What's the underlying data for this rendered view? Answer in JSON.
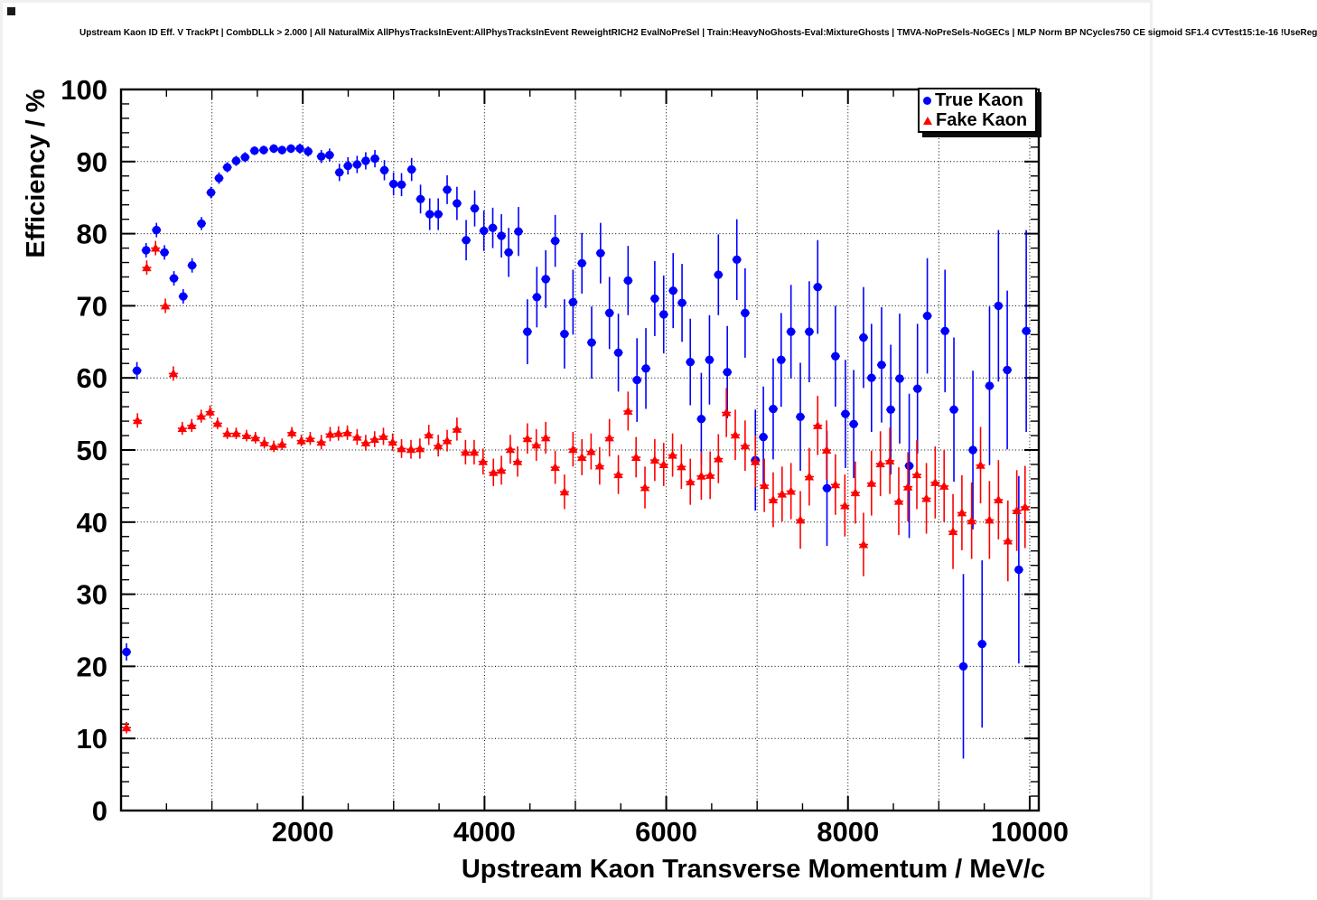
{
  "canvas": {
    "background": "#ffffff",
    "frame_color": "#000000",
    "grid_color": "#000000",
    "accent_blue": "#0000ff",
    "accent_red": "#ff0000"
  },
  "header": {
    "title": "Upstream Kaon ID Eff. V TrackPt | CombDLLk > 2.000 | All NaturalMix AllPhysTracksInEvent:AllPhysTracksInEvent ReweightRICH2 EvalNoPreSel | Train:HeavyNoGhosts-Eval:MixtureGhosts | TMVA-NoPreSels-NoGECs | MLP Norm BP NCycles750 CE sigmoid SF1.4 CVTest15:1e-16 !UseReg"
  },
  "chart_data": {
    "type": "scatter",
    "title": "Upstream Kaon ID Eff. V TrackPt | CombDLLk > 2.000 | All NaturalMix AllPhysTracksInEvent:AllPhysTracksInEvent ReweightRICH2 EvalNoPreSel | Train:HeavyNoGhosts-Eval:MixtureGhosts | TMVA-NoPreSels-NoGECs | MLP Norm BP NCycles750 CE sigmoid SF1.4 CVTest15:1e-16 !UseReg",
    "xlabel": "Upstream Kaon Transverse Momentum / MeV/c",
    "ylabel": "Efficiency / %",
    "xlim": [
      0,
      10100
    ],
    "ylim": [
      0,
      100
    ],
    "x_major_ticks": [
      2000,
      4000,
      6000,
      8000,
      10000
    ],
    "x_mid_tick_step": 1000,
    "x_minor_tick_step": 500,
    "y_major_ticks": [
      0,
      10,
      20,
      30,
      40,
      50,
      60,
      70,
      80,
      90,
      100
    ],
    "y_minor_tick_step": 2,
    "grid": {
      "x_step": 1000,
      "y_step": 10,
      "style": "dotted",
      "on": true
    },
    "legend": {
      "position": "top-right",
      "entries": [
        {
          "label": "True Kaon",
          "marker": "circle",
          "color": "#0000ff"
        },
        {
          "label": "Fake Kaon",
          "marker": "triangle",
          "color": "#ff0000"
        }
      ]
    },
    "point_format": [
      "pt_MeV",
      "efficiency_percent",
      "error_percent"
    ],
    "series": [
      {
        "name": "True Kaon",
        "marker": "circle",
        "color": "#0000ff",
        "points": [
          [
            60,
            22.0,
            1.2
          ],
          [
            175,
            61.0,
            1.2
          ],
          [
            276,
            77.7,
            1.0
          ],
          [
            390,
            80.5,
            1.0
          ],
          [
            478,
            77.4,
            1.0
          ],
          [
            582,
            73.8,
            1.0
          ],
          [
            684,
            71.3,
            1.0
          ],
          [
            782,
            75.6,
            1.0
          ],
          [
            885,
            81.4,
            0.9
          ],
          [
            990,
            85.7,
            0.8
          ],
          [
            1078,
            87.7,
            0.8
          ],
          [
            1169,
            89.2,
            0.7
          ],
          [
            1267,
            90.1,
            0.7
          ],
          [
            1365,
            90.6,
            0.7
          ],
          [
            1469,
            91.5,
            0.6
          ],
          [
            1570,
            91.6,
            0.6
          ],
          [
            1681,
            91.8,
            0.6
          ],
          [
            1772,
            91.6,
            0.6
          ],
          [
            1870,
            91.8,
            0.6
          ],
          [
            1968,
            91.8,
            0.7
          ],
          [
            2059,
            91.4,
            0.7
          ],
          [
            2204,
            90.7,
            0.9
          ],
          [
            2295,
            90.9,
            0.9
          ],
          [
            2403,
            88.5,
            1.2
          ],
          [
            2497,
            89.4,
            1.2
          ],
          [
            2598,
            89.6,
            1.2
          ],
          [
            2693,
            90.1,
            1.2
          ],
          [
            2794,
            90.4,
            1.2
          ],
          [
            2898,
            88.8,
            1.4
          ],
          [
            2999,
            86.9,
            1.6
          ],
          [
            3087,
            86.8,
            1.6
          ],
          [
            3198,
            88.9,
            1.6
          ],
          [
            3296,
            84.8,
            2.0
          ],
          [
            3397,
            82.7,
            2.2
          ],
          [
            3491,
            82.7,
            2.2
          ],
          [
            3589,
            86.1,
            2.0
          ],
          [
            3697,
            84.2,
            2.3
          ],
          [
            3798,
            79.1,
            2.8
          ],
          [
            3892,
            83.5,
            2.5
          ],
          [
            3993,
            80.4,
            2.8
          ],
          [
            4091,
            80.8,
            2.8
          ],
          [
            4186,
            79.7,
            3.0
          ],
          [
            4266,
            77.4,
            3.4
          ],
          [
            4374,
            80.3,
            3.4
          ],
          [
            4472,
            66.4,
            4.5
          ],
          [
            4576,
            71.2,
            4.2
          ],
          [
            4674,
            73.7,
            4.0
          ],
          [
            4778,
            79.0,
            3.6
          ],
          [
            4880,
            66.1,
            4.8
          ],
          [
            4974,
            70.5,
            4.5
          ],
          [
            5072,
            75.9,
            4.2
          ],
          [
            5179,
            64.9,
            5.0
          ],
          [
            5277,
            77.3,
            4.2
          ],
          [
            5375,
            69.0,
            5.0
          ],
          [
            5473,
            63.5,
            5.4
          ],
          [
            5580,
            73.5,
            4.8
          ],
          [
            5678,
            59.7,
            5.8
          ],
          [
            5776,
            61.3,
            5.6
          ],
          [
            5874,
            71.0,
            5.2
          ],
          [
            5972,
            68.8,
            5.4
          ],
          [
            6076,
            72.1,
            5.2
          ],
          [
            6174,
            70.4,
            5.4
          ],
          [
            6265,
            62.2,
            6.0
          ],
          [
            6386,
            54.3,
            6.4
          ],
          [
            6476,
            62.5,
            6.2
          ],
          [
            6574,
            74.3,
            5.6
          ],
          [
            6672,
            60.8,
            6.4
          ],
          [
            6777,
            76.4,
            5.6
          ],
          [
            6868,
            69.0,
            6.2
          ],
          [
            6981,
            48.6,
            7.0
          ],
          [
            7069,
            51.8,
            7.0
          ],
          [
            7177,
            55.7,
            7.0
          ],
          [
            7265,
            62.5,
            6.5
          ],
          [
            7373,
            66.4,
            6.5
          ],
          [
            7476,
            54.6,
            7.5
          ],
          [
            7574,
            66.4,
            7.0
          ],
          [
            7667,
            72.6,
            6.5
          ],
          [
            7769,
            44.7,
            8.0
          ],
          [
            7862,
            63.0,
            7.0
          ],
          [
            7972,
            55.0,
            7.5
          ],
          [
            8063,
            53.6,
            7.5
          ],
          [
            8171,
            65.6,
            7.0
          ],
          [
            8259,
            60.0,
            7.5
          ],
          [
            8370,
            61.8,
            8.0
          ],
          [
            8471,
            55.6,
            9.0
          ],
          [
            8569,
            59.9,
            9.0
          ],
          [
            8674,
            47.8,
            10.0
          ],
          [
            8765,
            58.5,
            9.0
          ],
          [
            8873,
            68.6,
            8.0
          ],
          [
            9068,
            66.5,
            8.5
          ],
          [
            9166,
            55.6,
            10.0
          ],
          [
            9270,
            20.0,
            12.8
          ],
          [
            9375,
            50.0,
            11.0
          ],
          [
            9476,
            23.1,
            11.6
          ],
          [
            9558,
            58.9,
            11.0
          ],
          [
            9656,
            70.0,
            10.5
          ],
          [
            9753,
            61.1,
            11.0
          ],
          [
            9880,
            33.4,
            13.0
          ],
          [
            9962,
            66.5,
            14.0
          ]
        ]
      },
      {
        "name": "Fake Kaon",
        "marker": "triangle",
        "color": "#ff0000",
        "points": [
          [
            60,
            11.5,
            0.8
          ],
          [
            181,
            54.1,
            1.0
          ],
          [
            283,
            75.3,
            1.0
          ],
          [
            380,
            78.0,
            1.0
          ],
          [
            488,
            70.0,
            1.0
          ],
          [
            576,
            60.6,
            1.0
          ],
          [
            674,
            53.0,
            0.9
          ],
          [
            778,
            53.4,
            0.9
          ],
          [
            882,
            54.7,
            0.9
          ],
          [
            980,
            55.3,
            0.9
          ],
          [
            1062,
            53.7,
            0.8
          ],
          [
            1169,
            52.3,
            0.8
          ],
          [
            1267,
            52.3,
            0.8
          ],
          [
            1381,
            52.0,
            0.8
          ],
          [
            1479,
            51.7,
            0.8
          ],
          [
            1577,
            51.0,
            0.8
          ],
          [
            1681,
            50.5,
            0.8
          ],
          [
            1772,
            50.8,
            0.8
          ],
          [
            1880,
            52.4,
            0.8
          ],
          [
            1984,
            51.3,
            0.8
          ],
          [
            2082,
            51.6,
            0.9
          ],
          [
            2204,
            51.1,
            1.0
          ],
          [
            2301,
            52.2,
            1.0
          ],
          [
            2393,
            52.3,
            1.0
          ],
          [
            2491,
            52.4,
            1.0
          ],
          [
            2598,
            51.8,
            1.1
          ],
          [
            2693,
            51.0,
            1.1
          ],
          [
            2791,
            51.5,
            1.1
          ],
          [
            2888,
            51.9,
            1.2
          ],
          [
            2989,
            51.1,
            1.2
          ],
          [
            3087,
            50.2,
            1.3
          ],
          [
            3191,
            50.1,
            1.3
          ],
          [
            3289,
            50.2,
            1.4
          ],
          [
            3387,
            52.1,
            1.4
          ],
          [
            3491,
            50.6,
            1.5
          ],
          [
            3589,
            51.3,
            1.5
          ],
          [
            3697,
            52.9,
            1.6
          ],
          [
            3791,
            49.7,
            1.7
          ],
          [
            3886,
            49.7,
            1.7
          ],
          [
            3984,
            48.4,
            1.8
          ],
          [
            4098,
            46.9,
            1.9
          ],
          [
            4186,
            47.2,
            2.0
          ],
          [
            4284,
            50.1,
            2.0
          ],
          [
            4364,
            48.4,
            2.1
          ],
          [
            4472,
            51.6,
            2.1
          ],
          [
            4570,
            50.7,
            2.2
          ],
          [
            4674,
            51.7,
            2.2
          ],
          [
            4778,
            47.6,
            2.3
          ],
          [
            4880,
            44.2,
            2.4
          ],
          [
            4974,
            50.1,
            2.4
          ],
          [
            5072,
            49.0,
            2.5
          ],
          [
            5173,
            49.8,
            2.5
          ],
          [
            5267,
            47.8,
            2.6
          ],
          [
            5375,
            51.7,
            2.6
          ],
          [
            5473,
            46.6,
            2.7
          ],
          [
            5580,
            55.4,
            2.7
          ],
          [
            5668,
            49.0,
            2.8
          ],
          [
            5766,
            44.8,
            2.9
          ],
          [
            5874,
            48.6,
            2.9
          ],
          [
            5972,
            48.0,
            3.0
          ],
          [
            6070,
            49.3,
            3.0
          ],
          [
            6167,
            47.7,
            3.1
          ],
          [
            6265,
            45.6,
            3.2
          ],
          [
            6386,
            46.4,
            3.3
          ],
          [
            6483,
            46.5,
            3.3
          ],
          [
            6574,
            48.8,
            3.4
          ],
          [
            6662,
            55.2,
            3.4
          ],
          [
            6760,
            52.1,
            3.5
          ],
          [
            6868,
            50.6,
            3.5
          ],
          [
            6981,
            48.4,
            3.6
          ],
          [
            7079,
            45.1,
            3.7
          ],
          [
            7177,
            43.1,
            3.8
          ],
          [
            7275,
            43.9,
            3.8
          ],
          [
            7373,
            44.3,
            3.9
          ],
          [
            7476,
            40.3,
            4.0
          ],
          [
            7574,
            46.3,
            4.0
          ],
          [
            7667,
            53.4,
            4.1
          ],
          [
            7765,
            50.0,
            4.1
          ],
          [
            7862,
            45.2,
            4.2
          ],
          [
            7966,
            42.3,
            4.3
          ],
          [
            8081,
            44.1,
            4.3
          ],
          [
            8171,
            36.9,
            4.4
          ],
          [
            8259,
            45.4,
            4.5
          ],
          [
            8357,
            48.1,
            4.5
          ],
          [
            8461,
            48.5,
            4.6
          ],
          [
            8559,
            42.9,
            4.7
          ],
          [
            8660,
            44.9,
            4.8
          ],
          [
            8758,
            46.6,
            4.8
          ],
          [
            8863,
            43.3,
            4.9
          ],
          [
            8960,
            45.5,
            5.0
          ],
          [
            9058,
            45.0,
            5.0
          ],
          [
            9156,
            38.7,
            5.2
          ],
          [
            9254,
            41.3,
            5.2
          ],
          [
            9361,
            40.2,
            5.3
          ],
          [
            9459,
            47.9,
            5.3
          ],
          [
            9557,
            40.3,
            5.4
          ],
          [
            9656,
            43.1,
            5.5
          ],
          [
            9760,
            37.4,
            5.6
          ],
          [
            9858,
            41.6,
            5.6
          ],
          [
            9949,
            42.1,
            5.7
          ]
        ]
      }
    ]
  }
}
